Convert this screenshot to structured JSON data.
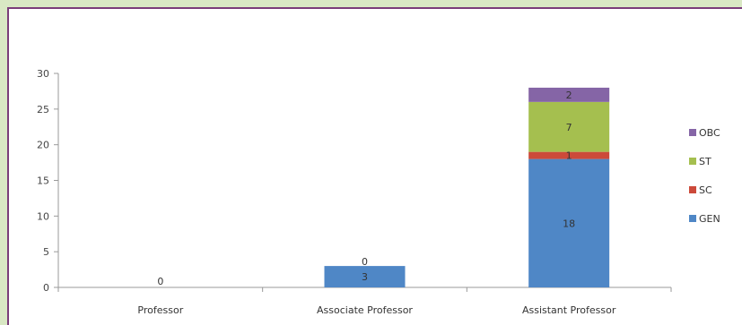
{
  "chart_data": {
    "type": "bar",
    "stacked": true,
    "categories": [
      "Professor",
      "Associate Professor",
      "Assistant Professor"
    ],
    "series": [
      {
        "name": "GEN",
        "color": "#4f87c6",
        "values": [
          0,
          3,
          18
        ],
        "labels": [
          "0",
          "3",
          "18"
        ]
      },
      {
        "name": "SC",
        "color": "#cc4a3a",
        "values": [
          0,
          0,
          1
        ],
        "labels": [
          "",
          "0",
          "1"
        ]
      },
      {
        "name": "ST",
        "color": "#a5bf4f",
        "values": [
          0,
          0,
          7
        ],
        "labels": [
          "",
          "",
          "7"
        ]
      },
      {
        "name": "OBC",
        "color": "#8565a6",
        "values": [
          0,
          0,
          2
        ],
        "labels": [
          "",
          "",
          "2"
        ]
      }
    ],
    "ylim": [
      0,
      30
    ],
    "yticks": [
      0,
      5,
      10,
      15,
      20,
      25,
      30
    ],
    "legend_position": "right",
    "grid": false,
    "title": "",
    "xlabel": "",
    "ylabel": ""
  }
}
